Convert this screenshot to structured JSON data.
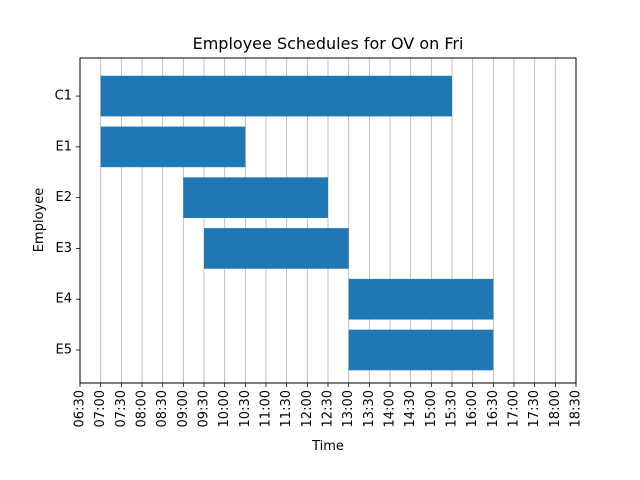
{
  "chart_data": {
    "type": "bar",
    "orientation": "horizontal-gantt",
    "title": "Employee Schedules for OV on Fri",
    "xlabel": "Time",
    "ylabel": "Employee",
    "grid": "vertical",
    "bar_color": "#1f77b4",
    "x_ticks": [
      "06:30",
      "07:00",
      "07:30",
      "08:00",
      "08:30",
      "09:00",
      "09:30",
      "10:00",
      "10:30",
      "11:00",
      "11:30",
      "12:00",
      "12:30",
      "13:00",
      "13:30",
      "14:00",
      "14:30",
      "15:00",
      "15:30",
      "16:00",
      "16:30",
      "17:00",
      "17:30",
      "18:00",
      "18:30"
    ],
    "xlim": [
      "06:30",
      "18:30"
    ],
    "categories": [
      "C1",
      "E1",
      "E2",
      "E3",
      "E4",
      "E5"
    ],
    "shifts": [
      {
        "employee": "C1",
        "start": "07:00",
        "end": "15:30"
      },
      {
        "employee": "E1",
        "start": "07:00",
        "end": "10:30"
      },
      {
        "employee": "E2",
        "start": "09:00",
        "end": "12:30"
      },
      {
        "employee": "E3",
        "start": "09:30",
        "end": "13:00"
      },
      {
        "employee": "E4",
        "start": "13:00",
        "end": "16:30"
      },
      {
        "employee": "E5",
        "start": "13:00",
        "end": "16:30"
      }
    ]
  }
}
